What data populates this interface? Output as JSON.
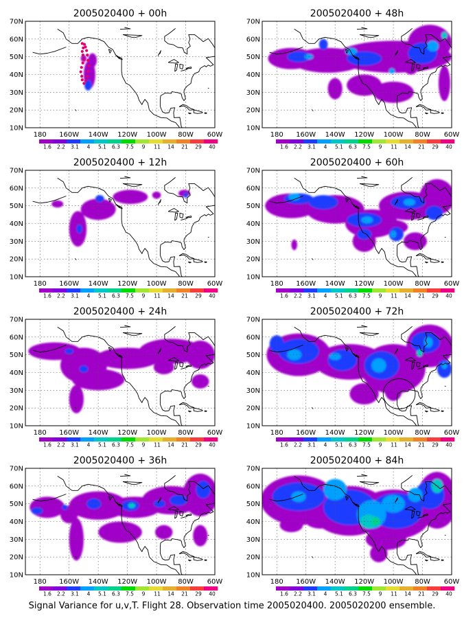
{
  "footer": "Signal Variance for u,v,T. Flight 28. Observation time 2005020400. 2005020200 ensemble.",
  "lat_labels": [
    "70N",
    "60N",
    "50N",
    "40N",
    "30N",
    "20N",
    "10N"
  ],
  "lon_labels": [
    "180",
    "160W",
    "140W",
    "120W",
    "100W",
    "80W",
    "60W"
  ],
  "colorbar": {
    "labels": [
      "1.6",
      "2.2",
      "3.1",
      "4",
      "5.1",
      "6.3",
      "7.5",
      "9",
      "11",
      "14",
      "21",
      "29",
      "40"
    ],
    "colors": [
      "#a000c8",
      "#8200dc",
      "#1e3cff",
      "#00a0ff",
      "#00c8c8",
      "#00d28c",
      "#00dc00",
      "#a0e632",
      "#e6dc32",
      "#e6af2d",
      "#f08228",
      "#fa3c3c",
      "#f00082"
    ]
  },
  "panels": [
    {
      "title": "2005020400 + 00h",
      "lead_hours": 0
    },
    {
      "title": "2005020400 + 48h",
      "lead_hours": 48
    },
    {
      "title": "2005020400 + 12h",
      "lead_hours": 12
    },
    {
      "title": "2005020400 + 60h",
      "lead_hours": 60
    },
    {
      "title": "2005020400 + 24h",
      "lead_hours": 24
    },
    {
      "title": "2005020400 + 72h",
      "lead_hours": 72
    },
    {
      "title": "2005020400 + 36h",
      "lead_hours": 36
    },
    {
      "title": "2005020400 + 84h",
      "lead_hours": 84
    }
  ],
  "flight_track_color": "#e0006e",
  "gridline_color": "#555555"
}
